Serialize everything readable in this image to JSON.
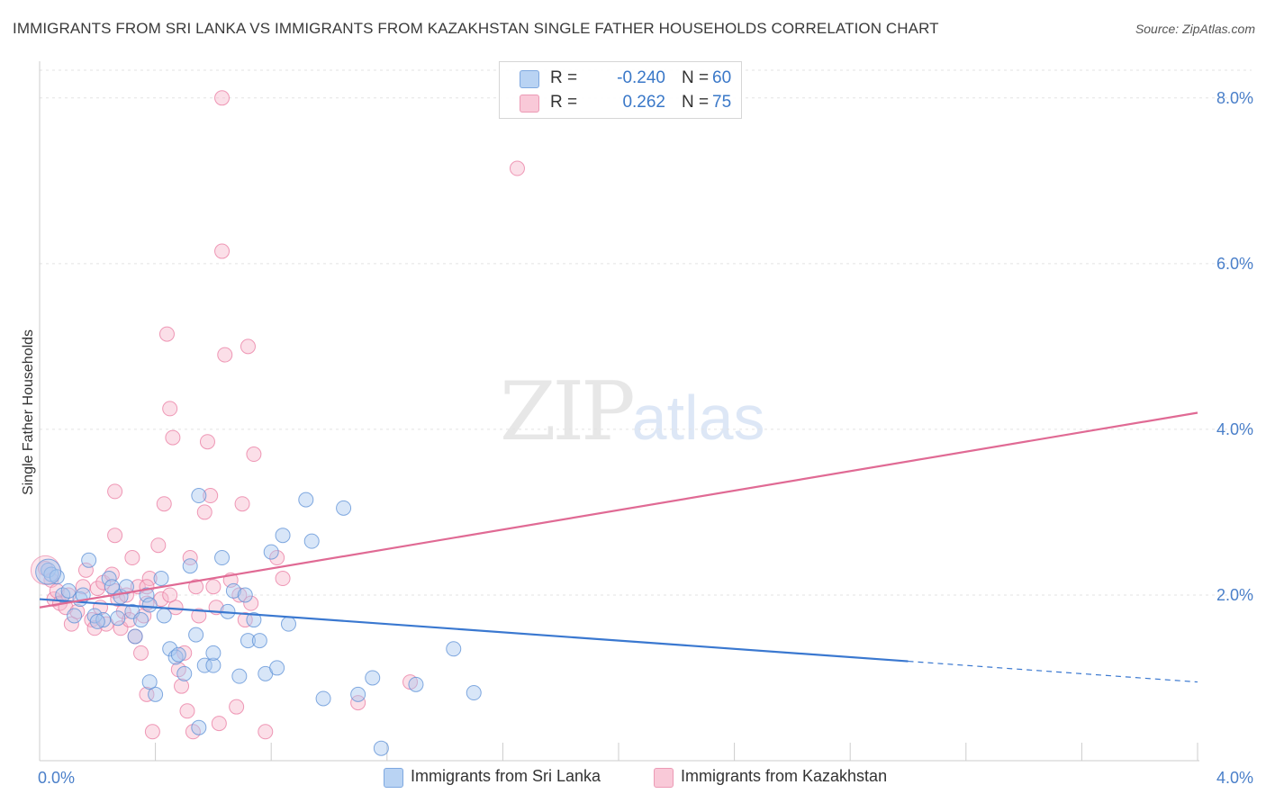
{
  "header": {
    "title": "IMMIGRANTS FROM SRI LANKA VS IMMIGRANTS FROM KAZAKHSTAN SINGLE FATHER HOUSEHOLDS CORRELATION CHART",
    "source": "Source: ZipAtlas.com"
  },
  "watermark": {
    "zip": "ZIP",
    "atlas": "atlas"
  },
  "legend": {
    "r_label": "R =",
    "n_label": "N =",
    "rows": [
      {
        "r": "-0.240",
        "n": "60",
        "color": "#a8c8f0"
      },
      {
        "r": "0.262",
        "n": "75",
        "color": "#f6b8cc"
      }
    ]
  },
  "chart_data": {
    "type": "scatter",
    "title": "IMMIGRANTS FROM SRI LANKA VS IMMIGRANTS FROM KAZAKHSTAN SINGLE FATHER HOUSEHOLDS CORRELATION CHART",
    "xlabel": "",
    "ylabel": "Single Father Households",
    "xlim": [
      0,
      4
    ],
    "ylim": [
      0,
      8.4
    ],
    "x_tick_labels": [
      "0.0%",
      "4.0%"
    ],
    "y_ticks": [
      2,
      4,
      6,
      8
    ],
    "y_tick_labels": [
      "2.0%",
      "4.0%",
      "6.0%",
      "8.0%"
    ],
    "grid": true,
    "legend_position": "bottom",
    "series": [
      {
        "name": "Immigrants from Sri Lanka",
        "color": "#5b8fd6",
        "fill": "#a8c8f0",
        "trend": {
          "x": [
            0.0,
            3.0
          ],
          "y": [
            1.95,
            1.2
          ],
          "dashed_to": [
            4.0,
            0.95
          ]
        },
        "points": [
          [
            0.03,
            2.3
          ],
          [
            0.04,
            2.25
          ],
          [
            0.06,
            2.22
          ],
          [
            0.08,
            2.0
          ],
          [
            0.1,
            2.05
          ],
          [
            0.12,
            1.75
          ],
          [
            0.14,
            1.95
          ],
          [
            0.15,
            2.0
          ],
          [
            0.17,
            2.42
          ],
          [
            0.19,
            1.75
          ],
          [
            0.22,
            1.7
          ],
          [
            0.24,
            2.2
          ],
          [
            0.25,
            2.1
          ],
          [
            0.27,
            1.72
          ],
          [
            0.28,
            1.98
          ],
          [
            0.3,
            2.1
          ],
          [
            0.32,
            1.8
          ],
          [
            0.33,
            1.5
          ],
          [
            0.35,
            1.7
          ],
          [
            0.37,
            2.0
          ],
          [
            0.38,
            1.88
          ],
          [
            0.4,
            0.8
          ],
          [
            0.42,
            2.2
          ],
          [
            0.43,
            1.75
          ],
          [
            0.45,
            1.35
          ],
          [
            0.47,
            1.25
          ],
          [
            0.5,
            1.05
          ],
          [
            0.52,
            2.35
          ],
          [
            0.54,
            1.52
          ],
          [
            0.55,
            0.4
          ],
          [
            0.57,
            1.15
          ],
          [
            0.6,
            1.15
          ],
          [
            0.63,
            2.45
          ],
          [
            0.65,
            1.8
          ],
          [
            0.67,
            2.05
          ],
          [
            0.69,
            1.02
          ],
          [
            0.71,
            2.0
          ],
          [
            0.72,
            1.45
          ],
          [
            0.74,
            1.7
          ],
          [
            0.76,
            1.45
          ],
          [
            0.78,
            1.05
          ],
          [
            0.8,
            2.52
          ],
          [
            0.82,
            1.12
          ],
          [
            0.84,
            2.72
          ],
          [
            0.86,
            1.65
          ],
          [
            0.92,
            3.15
          ],
          [
            0.94,
            2.65
          ],
          [
            0.98,
            0.75
          ],
          [
            1.05,
            3.05
          ],
          [
            1.1,
            0.8
          ],
          [
            1.15,
            1.0
          ],
          [
            1.18,
            0.15
          ],
          [
            1.3,
            0.92
          ],
          [
            1.43,
            1.35
          ],
          [
            1.5,
            0.82
          ],
          [
            0.55,
            3.2
          ],
          [
            0.38,
            0.95
          ],
          [
            0.6,
            1.3
          ],
          [
            0.48,
            1.28
          ],
          [
            0.2,
            1.68
          ]
        ]
      },
      {
        "name": "Immigrants from Kazakhstan",
        "color": "#e97aa0",
        "fill": "#f6b8cc",
        "trend": {
          "x": [
            0.0,
            4.0
          ],
          "y": [
            1.85,
            4.2
          ]
        },
        "points": [
          [
            0.02,
            2.32
          ],
          [
            0.04,
            2.18
          ],
          [
            0.05,
            1.95
          ],
          [
            0.06,
            2.05
          ],
          [
            0.07,
            1.9
          ],
          [
            0.09,
            1.85
          ],
          [
            0.1,
            2.0
          ],
          [
            0.11,
            1.65
          ],
          [
            0.13,
            1.8
          ],
          [
            0.15,
            2.1
          ],
          [
            0.16,
            2.3
          ],
          [
            0.18,
            1.7
          ],
          [
            0.19,
            1.6
          ],
          [
            0.2,
            2.08
          ],
          [
            0.21,
            1.85
          ],
          [
            0.22,
            2.15
          ],
          [
            0.23,
            1.65
          ],
          [
            0.25,
            2.25
          ],
          [
            0.26,
            2.05
          ],
          [
            0.27,
            1.95
          ],
          [
            0.28,
            1.6
          ],
          [
            0.29,
            1.8
          ],
          [
            0.3,
            2.0
          ],
          [
            0.31,
            1.7
          ],
          [
            0.32,
            2.45
          ],
          [
            0.33,
            1.5
          ],
          [
            0.34,
            2.1
          ],
          [
            0.35,
            1.3
          ],
          [
            0.36,
            1.75
          ],
          [
            0.37,
            0.8
          ],
          [
            0.38,
            2.2
          ],
          [
            0.39,
            0.35
          ],
          [
            0.41,
            2.6
          ],
          [
            0.42,
            1.95
          ],
          [
            0.43,
            3.1
          ],
          [
            0.44,
            5.15
          ],
          [
            0.45,
            4.25
          ],
          [
            0.46,
            3.9
          ],
          [
            0.47,
            1.85
          ],
          [
            0.48,
            1.1
          ],
          [
            0.49,
            0.9
          ],
          [
            0.5,
            1.3
          ],
          [
            0.51,
            0.6
          ],
          [
            0.52,
            2.45
          ],
          [
            0.53,
            0.35
          ],
          [
            0.54,
            2.1
          ],
          [
            0.55,
            1.75
          ],
          [
            0.57,
            3.0
          ],
          [
            0.58,
            3.85
          ],
          [
            0.59,
            3.2
          ],
          [
            0.6,
            2.1
          ],
          [
            0.61,
            1.85
          ],
          [
            0.62,
            0.45
          ],
          [
            0.63,
            6.15
          ],
          [
            0.64,
            4.9
          ],
          [
            0.66,
            2.18
          ],
          [
            0.68,
            0.65
          ],
          [
            0.69,
            2.0
          ],
          [
            0.7,
            3.1
          ],
          [
            0.71,
            1.7
          ],
          [
            0.72,
            5.0
          ],
          [
            0.73,
            1.9
          ],
          [
            0.74,
            3.7
          ],
          [
            0.78,
            0.35
          ],
          [
            0.82,
            2.45
          ],
          [
            0.84,
            2.2
          ],
          [
            1.1,
            0.7
          ],
          [
            1.28,
            0.95
          ],
          [
            1.65,
            7.15
          ],
          [
            0.63,
            8.0
          ],
          [
            0.26,
            2.72
          ],
          [
            0.26,
            3.25
          ],
          [
            0.37,
            2.1
          ],
          [
            0.37,
            1.9
          ],
          [
            0.45,
            2.0
          ]
        ]
      }
    ]
  },
  "bottom_legend": [
    {
      "label": "Immigrants from Sri Lanka",
      "color": "#a8c8f0"
    },
    {
      "label": "Immigrants from Kazakhstan",
      "color": "#f6b8cc"
    }
  ]
}
